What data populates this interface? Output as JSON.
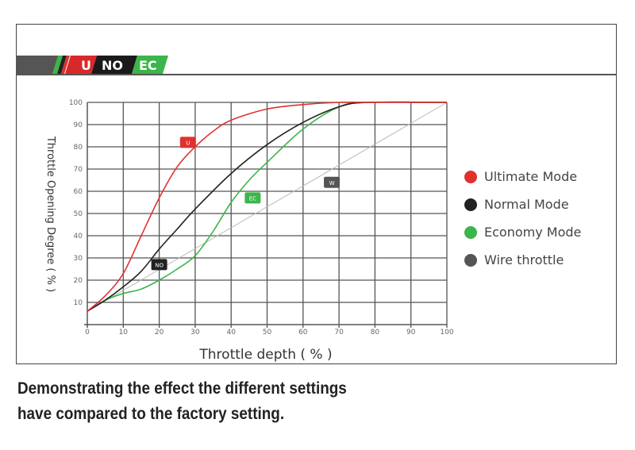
{
  "logo": {
    "u": "U",
    "no": "NO",
    "ec": "EC"
  },
  "caption": [
    "Demonstrating the effect the different settings",
    "have compared to the factory setting."
  ],
  "chart_data": {
    "type": "line",
    "xlabel": "Throttle depth ( % )",
    "ylabel": "Throttle Opening Degree ( % )",
    "xlim": [
      0,
      100
    ],
    "ylim": [
      0,
      100
    ],
    "xticks": [
      0,
      10,
      20,
      30,
      40,
      50,
      60,
      70,
      80,
      90,
      100
    ],
    "yticks": [
      10,
      20,
      30,
      40,
      50,
      60,
      70,
      80,
      90,
      100
    ],
    "grid": true,
    "legend_position": "right",
    "series": [
      {
        "name": "Ultimate Mode",
        "marker": "U",
        "color": "#e0312f",
        "marker_at": [
          28,
          82
        ],
        "x": [
          0,
          5,
          10,
          15,
          20,
          25,
          30,
          35,
          40,
          50,
          60,
          70,
          80,
          100
        ],
        "y": [
          6,
          13,
          23,
          40,
          57,
          71,
          80,
          87,
          92,
          97,
          99,
          100,
          100,
          100
        ]
      },
      {
        "name": "Normal Mode",
        "marker": "NO",
        "color": "#222222",
        "marker_at": [
          20,
          27
        ],
        "x": [
          0,
          5,
          10,
          15,
          20,
          25,
          30,
          40,
          50,
          60,
          70,
          78,
          100
        ],
        "y": [
          6,
          11,
          17,
          24,
          34,
          43,
          52,
          68,
          81,
          91,
          98,
          100,
          100
        ]
      },
      {
        "name": "Economy Mode",
        "marker": "EC",
        "color": "#3cb54a",
        "marker_at": [
          46,
          57
        ],
        "x": [
          0,
          5,
          10,
          15,
          20,
          25,
          30,
          35,
          40,
          45,
          50,
          60,
          70,
          78,
          100
        ],
        "y": [
          6,
          11,
          14,
          16,
          20,
          25,
          31,
          42,
          55,
          65,
          73,
          88,
          98,
          100,
          100
        ]
      },
      {
        "name": "Wire throttle",
        "marker": "W",
        "color": "#bbbbbb",
        "marker_at": [
          68,
          64
        ],
        "x": [
          0,
          100
        ],
        "y": [
          6,
          100
        ]
      }
    ]
  }
}
